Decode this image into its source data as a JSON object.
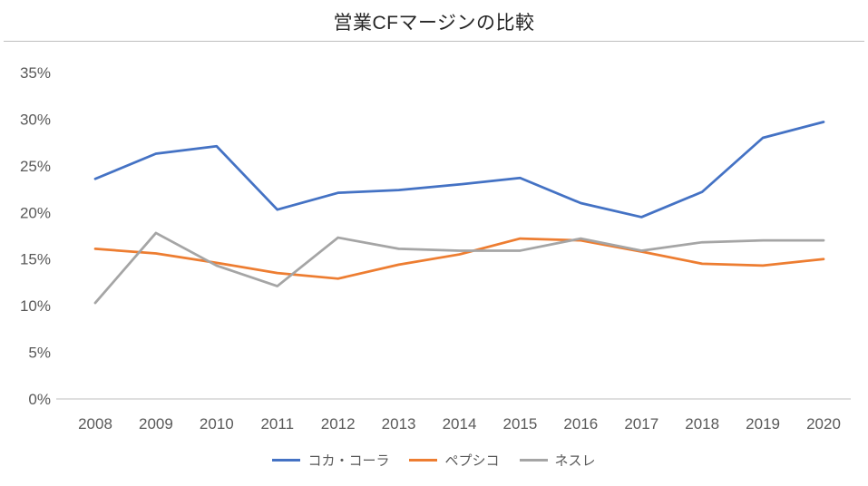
{
  "chart_data": {
    "type": "line",
    "title": "営業CFマージンの比較",
    "x": [
      2008,
      2009,
      2010,
      2011,
      2012,
      2013,
      2014,
      2015,
      2016,
      2017,
      2018,
      2019,
      2020
    ],
    "xlabel": "",
    "ylabel": "",
    "ylim": [
      0,
      35
    ],
    "y_ticks": [
      0,
      5,
      10,
      15,
      20,
      25,
      30,
      35
    ],
    "y_tick_suffix": "%",
    "grid": false,
    "legend_position": "bottom",
    "series": [
      {
        "name": "コカ・コーラ",
        "color": "#4472C4",
        "values": [
          23.6,
          26.3,
          27.1,
          20.3,
          22.1,
          22.4,
          23.0,
          23.7,
          21.0,
          19.5,
          22.2,
          28.0,
          29.7
        ]
      },
      {
        "name": "ペプシコ",
        "color": "#ED7D31",
        "values": [
          16.1,
          15.6,
          14.6,
          13.5,
          12.9,
          14.4,
          15.5,
          17.2,
          17.0,
          15.8,
          14.5,
          14.3,
          15.0
        ]
      },
      {
        "name": "ネスレ",
        "color": "#A5A5A5",
        "values": [
          10.3,
          17.8,
          14.3,
          12.1,
          17.3,
          16.1,
          15.9,
          15.9,
          17.2,
          15.9,
          16.8,
          17.0,
          17.0
        ]
      }
    ]
  }
}
